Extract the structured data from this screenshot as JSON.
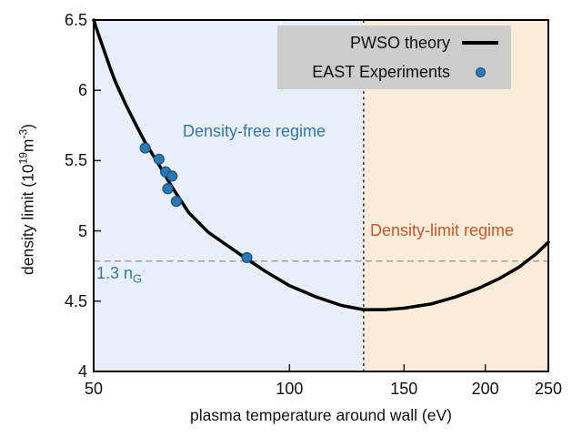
{
  "figure": {
    "xlabel": "plasma temperature around wall (eV)",
    "ylabel": {
      "p1": "density limit (10",
      "e1": "19",
      "p2": "m",
      "e2": "-3",
      "p3": ")"
    },
    "x_tick_labels": [
      "50",
      "100",
      "150",
      "200",
      "250"
    ],
    "y_tick_labels": [
      "4",
      "4.5",
      "5",
      "5.5",
      "6",
      "6.5"
    ]
  },
  "legend": {
    "background": "#cdcdcd",
    "entries": [
      {
        "label": "PWSO theory",
        "swatch": "line",
        "color": "#000000"
      },
      {
        "label": "EAST Experiments",
        "swatch": "dot",
        "color": "#2f77b3"
      }
    ]
  },
  "annotations": {
    "free_regime": {
      "text": "Density-free regime",
      "color": "#3277a8"
    },
    "limit_regime": {
      "text": "Density-limit regime",
      "color": "#c4582a"
    },
    "greenwald": {
      "text": "1.3 n",
      "sub": "G",
      "color": "#35789f"
    }
  },
  "chart_data": {
    "type": "line",
    "title": "",
    "xlabel": "plasma temperature around wall (eV)",
    "ylabel": "density limit (10^19 m^-3)",
    "x_scale": "log",
    "y_scale": "linear",
    "xlim": [
      50,
      250
    ],
    "ylim": [
      4,
      6.5
    ],
    "x_tick_values": [
      50,
      100,
      150,
      200,
      250
    ],
    "y_tick_values": [
      4,
      4.5,
      5,
      5.5,
      6,
      6.5
    ],
    "grid": false,
    "legend_position": "top-right-inside",
    "series": [
      {
        "name": "PWSO theory",
        "type": "line",
        "color": "#000000",
        "line_width": 3.5,
        "x": [
          50,
          51,
          52,
          53,
          54,
          56,
          58,
          60,
          63,
          66,
          70,
          75,
          80,
          86,
          92,
          100,
          110,
          120,
          130,
          140,
          150,
          165,
          180,
          195,
          210,
          225,
          240,
          250
        ],
        "y": [
          6.5,
          6.38,
          6.27,
          6.16,
          6.06,
          5.9,
          5.76,
          5.63,
          5.47,
          5.31,
          5.13,
          4.99,
          4.9,
          4.8,
          4.71,
          4.61,
          4.53,
          4.47,
          4.44,
          4.44,
          4.45,
          4.48,
          4.53,
          4.59,
          4.66,
          4.74,
          4.84,
          4.92
        ]
      },
      {
        "name": "EAST Experiments",
        "type": "scatter",
        "color": "#2f77b3",
        "edge_color": "#17527e",
        "marker_radius": 5.5,
        "x": [
          60,
          63,
          64.5,
          66,
          65,
          67,
          86
        ],
        "y": [
          5.59,
          5.51,
          5.42,
          5.39,
          5.3,
          5.21,
          4.81
        ]
      }
    ],
    "vline": {
      "x": 130,
      "style": "dashed",
      "color": "#3a3a3a"
    },
    "hline": {
      "y": 4.785,
      "style": "dashed",
      "color": "#9a9a9a",
      "label": "1.3 n_G"
    },
    "regions": [
      {
        "x_from": 50,
        "x_to": 130,
        "fill": "#e9eff8",
        "label": "Density-free regime"
      },
      {
        "x_from": 130,
        "x_to": 250,
        "fill": "#fcecda",
        "label": "Density-limit regime"
      }
    ]
  }
}
